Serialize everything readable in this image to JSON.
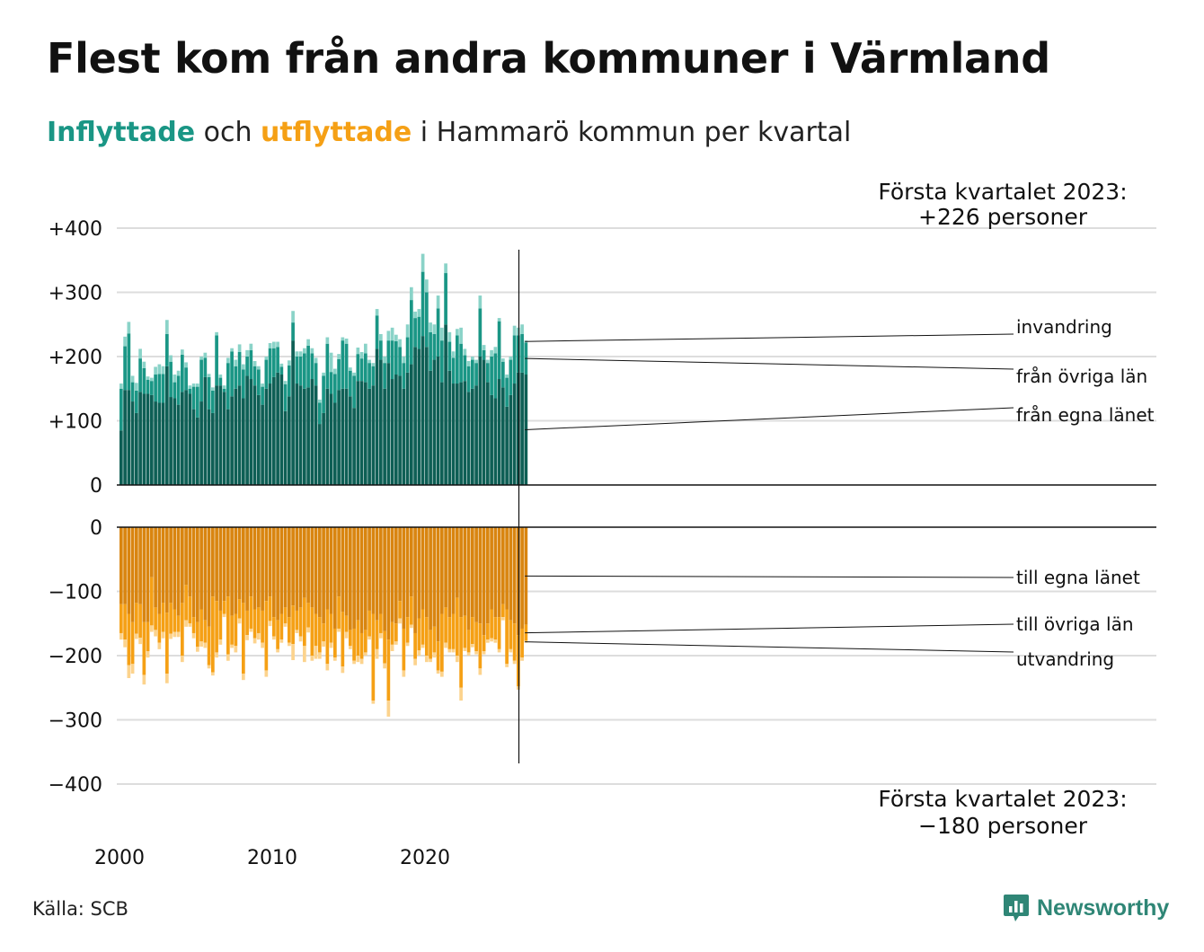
{
  "title": "Flest kom från andra kommuner i Värmland",
  "subtitle": {
    "in_word": "Inflyttade",
    "mid": " och ",
    "out_word": "utflyttade",
    "rest": " i Hammarö kommun per kvartal"
  },
  "annotations": {
    "top_line1": "Första kvartalet 2023:",
    "top_line2": "+226 personer",
    "bottom_line1": "Första kvartalet 2023:",
    "bottom_line2": "−180 personer"
  },
  "source": "Källa: SCB",
  "logo_text": "Newsworthy",
  "colors": {
    "in_own": "#0e5f55",
    "in_other": "#1a9685",
    "in_imm": "#8ad3c8",
    "out_own": "#d98510",
    "out_other": "#f5a015",
    "out_emi": "#fcd38d",
    "grid": "#dddddd",
    "axis": "#111111",
    "logo": "#2f8676"
  },
  "chart_data": {
    "type": "bar",
    "stacked": true,
    "x_start": "2000 Q1",
    "x_ticks": [
      "2000",
      "2010",
      "2020"
    ],
    "top_panel": {
      "y_ticks": [
        "+400",
        "+300",
        "+200",
        "+100",
        "0"
      ],
      "ylim": [
        0,
        400
      ],
      "series": [
        {
          "name": "från egna länet",
          "values": [
            85,
            148,
            148,
            130,
            112,
            145,
            142,
            142,
            140,
            130,
            128,
            128,
            185,
            137,
            135,
            125,
            145,
            148,
            142,
            118,
            105,
            130,
            168,
            118,
            112,
            155,
            155,
            145,
            118,
            138,
            150,
            155,
            135,
            170,
            165,
            155,
            140,
            125,
            150,
            158,
            168,
            175,
            172,
            115,
            138,
            225,
            158,
            155,
            150,
            152,
            165,
            155,
            95,
            112,
            150,
            142,
            128,
            148,
            150,
            150,
            138,
            120,
            162,
            162,
            160,
            150,
            155,
            212,
            195,
            150,
            190,
            165,
            172,
            170,
            150,
            175,
            188,
            215,
            212,
            232,
            215,
            178,
            195,
            200,
            160,
            250,
            178,
            158,
            158,
            160,
            162,
            145,
            150,
            155,
            200,
            195,
            160,
            140,
            135,
            165,
            152,
            122,
            140,
            158,
            175,
            175,
            172
          ]
        },
        {
          "name": "från övriga län",
          "values": [
            65,
            68,
            88,
            30,
            35,
            52,
            40,
            22,
            22,
            42,
            45,
            45,
            50,
            55,
            25,
            45,
            58,
            35,
            8,
            35,
            48,
            65,
            30,
            50,
            35,
            78,
            12,
            5,
            72,
            70,
            35,
            52,
            45,
            30,
            45,
            30,
            40,
            28,
            45,
            55,
            45,
            40,
            12,
            42,
            48,
            28,
            42,
            45,
            55,
            65,
            40,
            35,
            33,
            58,
            70,
            34,
            45,
            48,
            75,
            70,
            40,
            50,
            42,
            35,
            45,
            40,
            30,
            52,
            30,
            40,
            35,
            60,
            52,
            45,
            40,
            55,
            100,
            45,
            50,
            100,
            85,
            60,
            40,
            75,
            65,
            80,
            45,
            40,
            75,
            60,
            40,
            40,
            45,
            35,
            75,
            15,
            30,
            60,
            70,
            90,
            40,
            45,
            55,
            75,
            58,
            60,
            50
          ]
        },
        {
          "name": "invandring",
          "values": [
            8,
            15,
            18,
            10,
            12,
            15,
            10,
            5,
            5,
            12,
            15,
            12,
            22,
            10,
            12,
            8,
            8,
            8,
            5,
            5,
            5,
            5,
            8,
            5,
            5,
            5,
            5,
            5,
            8,
            5,
            10,
            12,
            8,
            10,
            10,
            8,
            5,
            5,
            5,
            8,
            10,
            8,
            5,
            5,
            8,
            18,
            8,
            8,
            8,
            10,
            8,
            8,
            5,
            5,
            10,
            30,
            8,
            8,
            5,
            8,
            5,
            5,
            10,
            10,
            15,
            5,
            5,
            10,
            10,
            10,
            15,
            20,
            10,
            12,
            10,
            20,
            20,
            10,
            12,
            28,
            20,
            15,
            15,
            20,
            20,
            15,
            15,
            10,
            10,
            25,
            10,
            8,
            5,
            5,
            20,
            8,
            5,
            10,
            10,
            5,
            5,
            5,
            5,
            15,
            12,
            15,
            3
          ]
        }
      ]
    },
    "bottom_panel": {
      "y_ticks": [
        "0",
        "−100",
        "−200",
        "−300",
        "−400"
      ],
      "ylim": [
        -400,
        0
      ],
      "series": [
        {
          "name": "till egna länet",
          "values": [
            -120,
            -120,
            -135,
            -148,
            -118,
            -120,
            -148,
            -148,
            -78,
            -125,
            -135,
            -118,
            -133,
            -118,
            -128,
            -138,
            -118,
            -90,
            -108,
            -140,
            -148,
            -128,
            -145,
            -155,
            -108,
            -115,
            -130,
            -115,
            -108,
            -138,
            -135,
            -112,
            -118,
            -130,
            -108,
            -128,
            -125,
            -130,
            -115,
            -108,
            -140,
            -145,
            -135,
            -125,
            -140,
            -122,
            -130,
            -125,
            -110,
            -118,
            -125,
            -135,
            -140,
            -150,
            -128,
            -135,
            -158,
            -108,
            -132,
            -138,
            -160,
            -158,
            -145,
            -165,
            -160,
            -130,
            -135,
            -145,
            -135,
            -162,
            -175,
            -148,
            -150,
            -115,
            -158,
            -140,
            -108,
            -165,
            -142,
            -128,
            -140,
            -160,
            -155,
            -178,
            -135,
            -125,
            -140,
            -135,
            -110,
            -140,
            -138,
            -160,
            -140,
            -148,
            -150,
            -168,
            -150,
            -128,
            -140,
            -140,
            -120,
            -128,
            -145,
            -150,
            -168,
            -158,
            -152
          ]
        },
        {
          "name": "till övriga län",
          "values": [
            -45,
            -55,
            -80,
            -65,
            -48,
            -52,
            -82,
            -45,
            -75,
            -35,
            -45,
            -45,
            -95,
            -48,
            -35,
            -25,
            -82,
            -55,
            -42,
            -25,
            -38,
            -50,
            -35,
            -60,
            -118,
            -80,
            -45,
            -20,
            -90,
            -45,
            -50,
            -30,
            -110,
            -38,
            -50,
            -45,
            -40,
            -50,
            -108,
            -38,
            -30,
            -45,
            -40,
            -25,
            -40,
            -60,
            -30,
            -45,
            -75,
            -38,
            -75,
            -50,
            -55,
            -28,
            -85,
            -45,
            -45,
            -50,
            -85,
            -25,
            -25,
            -50,
            -55,
            -40,
            -35,
            -40,
            -135,
            -45,
            -30,
            -50,
            -95,
            -35,
            -28,
            -27,
            -65,
            -40,
            -44,
            -40,
            -50,
            -55,
            -60,
            -45,
            -40,
            -45,
            -90,
            -55,
            -50,
            -55,
            -90,
            -110,
            -50,
            -35,
            -42,
            -45,
            -70,
            -25,
            -25,
            -45,
            -35,
            -50,
            -20,
            -85,
            -45,
            -58,
            -80,
            -45,
            -25
          ]
        },
        {
          "name": "utvandring",
          "values": [
            -10,
            -12,
            -20,
            -15,
            -8,
            -10,
            -15,
            -10,
            -10,
            -10,
            -10,
            -10,
            -15,
            -8,
            -8,
            -8,
            -10,
            -10,
            -5,
            -8,
            -8,
            -8,
            -8,
            -5,
            -5,
            -8,
            -8,
            -5,
            -10,
            -5,
            -10,
            -8,
            -10,
            -8,
            -5,
            -8,
            -10,
            -8,
            -10,
            -8,
            -5,
            -5,
            -5,
            -5,
            -5,
            -25,
            -5,
            -8,
            -25,
            -8,
            -8,
            -20,
            -10,
            -8,
            -10,
            -8,
            -5,
            -5,
            -10,
            -10,
            -5,
            -5,
            -10,
            -8,
            -5,
            -5,
            -5,
            -15,
            -8,
            -8,
            -25,
            -10,
            -5,
            -8,
            -10,
            -5,
            -5,
            -10,
            -8,
            -5,
            -10,
            -5,
            -8,
            -5,
            -8,
            -8,
            -5,
            -5,
            -10,
            -20,
            -5,
            -5,
            -5,
            -5,
            -10,
            -5,
            -5,
            -5,
            -5,
            -5,
            -5,
            -5,
            -5,
            -5,
            -5,
            -5,
            -3
          ]
        }
      ]
    },
    "labels": {
      "top": [
        "invandring",
        "från övriga län",
        "från egna länet"
      ],
      "bottom": [
        "till egna länet",
        "till övriga län",
        "utvandring"
      ]
    }
  }
}
